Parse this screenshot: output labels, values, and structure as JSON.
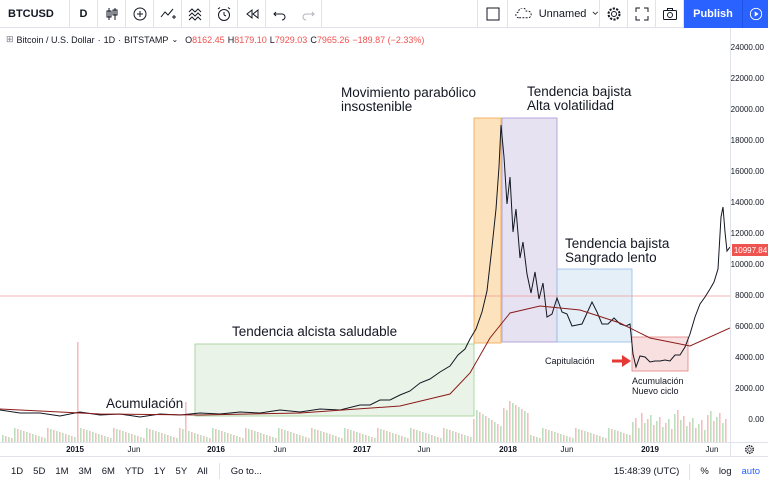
{
  "toolbar": {
    "symbol": "BTCUSD",
    "interval": "D",
    "layout_name": "Unnamed",
    "publish_label": "Publish"
  },
  "legend": {
    "title": "Bitcoin / U.S. Dollar",
    "interval": "1D",
    "exchange": "BITSTAMP",
    "open_label": "O",
    "open": "8162.45",
    "high_label": "H",
    "high": "8179.10",
    "low_label": "L",
    "low": "7929.03",
    "close_label": "C",
    "close": "7965.26",
    "change": "−189.87 (−2.33%)"
  },
  "price_axis": {
    "ticks": [
      "24000.00",
      "22000.00",
      "20000.00",
      "18000.00",
      "16000.00",
      "14000.00",
      "12000.00",
      "10000.00",
      "8000.00",
      "6000.00",
      "4000.00",
      "2000.00",
      "0.00"
    ],
    "last_price": "10997.84"
  },
  "time_axis": {
    "ticks": [
      {
        "label": "2015",
        "major": true
      },
      {
        "label": "Jun",
        "major": false
      },
      {
        "label": "2016",
        "major": true
      },
      {
        "label": "Jun",
        "major": false
      },
      {
        "label": "2017",
        "major": true
      },
      {
        "label": "Jun",
        "major": false
      },
      {
        "label": "2018",
        "major": true
      },
      {
        "label": "Jun",
        "major": false
      },
      {
        "label": "2019",
        "major": true
      },
      {
        "label": "Jun",
        "major": false
      }
    ]
  },
  "annotations": {
    "acumulacion": "Acumulación",
    "alcista": "Tendencia alcista saludable",
    "parabolico_1": "Movimiento parabólico",
    "parabolico_2": "insostenible",
    "bajista_alta_1": "Tendencia bajista",
    "bajista_alta_2": "Alta volatilidad",
    "bajista_lento_1": "Tendencia bajista",
    "bajista_lento_2": "Sangrado lento",
    "capitulacion": "Capitulación",
    "nuevo_ciclo_1": "Acumulación",
    "nuevo_ciclo_2": "Nuevo ciclo"
  },
  "bottombar": {
    "ranges": [
      "1D",
      "5D",
      "1M",
      "3M",
      "6M",
      "YTD",
      "1Y",
      "5Y",
      "All"
    ],
    "goto_label": "Go to...",
    "clock": "15:48:39 (UTC)",
    "percent_label": "%",
    "log_label": "log",
    "auto_label": "auto"
  },
  "colors": {
    "accent": "#2962ff",
    "price_line": "#ef5350",
    "green_zone": "#b7dfb0",
    "orange_zone": "#f6b26b",
    "purple_zone": "#b4a7d6",
    "blue_zone": "#9fc5e8",
    "red_zone": "#ea9999"
  }
}
